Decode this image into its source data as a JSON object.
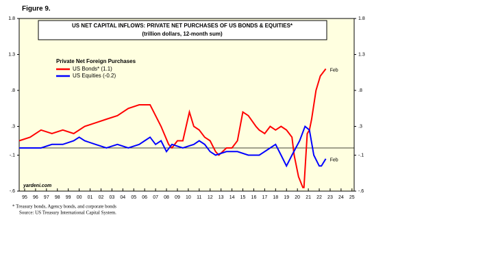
{
  "chart_data": {
    "type": "line",
    "figure_label": "Figure 9.",
    "title": "US NET CAPITAL INFLOWS: PRIVATE NET PURCHASES OF US BONDS & EQUITIES*",
    "subtitle": "(trillion dollars, 12-month sum)",
    "legend_title": "Private Net Foreign Purchases",
    "source_mark": "yardeni.com",
    "footnotes": [
      "*   Treasury bonds, Agency bonds, and corporate bonds",
      "Source: US Treasury International Capital System."
    ],
    "ylim": [
      -0.6,
      1.8
    ],
    "yticks": [
      1.8,
      {
        "value": 1.3,
        "label": "1.3"
      },
      {
        "value": 0.8,
        "label": ".8"
      },
      {
        "value": 0.3,
        "label": ".3"
      },
      {
        "value": -0.1,
        "label": "-.1"
      },
      {
        "value": -0.6,
        "label": "-.6"
      }
    ],
    "reference_line": 0,
    "xlim": [
      1995,
      2025.7
    ],
    "xticks": [
      {
        "value": 1995.5,
        "label": "95"
      },
      {
        "value": 1996.5,
        "label": "96"
      },
      {
        "value": 1997.5,
        "label": "97"
      },
      {
        "value": 1998.5,
        "label": "98"
      },
      {
        "value": 1999.5,
        "label": "99"
      },
      {
        "value": 2000.5,
        "label": "00"
      },
      {
        "value": 2001.5,
        "label": "01"
      },
      {
        "value": 2002.5,
        "label": "02"
      },
      {
        "value": 2003.5,
        "label": "03"
      },
      {
        "value": 2004.5,
        "label": "04"
      },
      {
        "value": 2005.5,
        "label": "05"
      },
      {
        "value": 2006.5,
        "label": "06"
      },
      {
        "value": 2007.5,
        "label": "07"
      },
      {
        "value": 2008.5,
        "label": "08"
      },
      {
        "value": 2009.5,
        "label": "09"
      },
      {
        "value": 2010.5,
        "label": "10"
      },
      {
        "value": 2011.5,
        "label": "11"
      },
      {
        "value": 2012.5,
        "label": "12"
      },
      {
        "value": 2013.5,
        "label": "13"
      },
      {
        "value": 2014.5,
        "label": "14"
      },
      {
        "value": 2015.5,
        "label": "15"
      },
      {
        "value": 2016.5,
        "label": "16"
      },
      {
        "value": 2017.5,
        "label": "17"
      },
      {
        "value": 2018.5,
        "label": "18"
      },
      {
        "value": 2019.5,
        "label": "19"
      },
      {
        "value": 2020.5,
        "label": "20"
      },
      {
        "value": 2021.5,
        "label": "21"
      },
      {
        "value": 2022.5,
        "label": "22"
      },
      {
        "value": 2023.5,
        "label": "23"
      },
      {
        "value": 2024.5,
        "label": "24"
      },
      {
        "value": 2025.5,
        "label": "25"
      }
    ],
    "series": [
      {
        "name": "US Bonds* (1.1)",
        "color": "#ff0000",
        "end_label": "Feb",
        "x": [
          1995,
          1996,
          1997,
          1998,
          1999,
          2000,
          2001,
          2002,
          2003,
          2004,
          2005,
          2006,
          2007,
          2008,
          2008.7,
          2009,
          2009.5,
          2010,
          2010.6,
          2011,
          2011.5,
          2012,
          2012.5,
          2013,
          2013.3,
          2014,
          2014.5,
          2015,
          2015.5,
          2016,
          2016.7,
          2017,
          2017.5,
          2018,
          2018.5,
          2019,
          2019.5,
          2020,
          2020.2,
          2020.6,
          2021,
          2021.1,
          2021.4,
          2021.6,
          2021.8,
          2022.2,
          2022.6,
          2023.1
        ],
        "values": [
          0.1,
          0.15,
          0.25,
          0.2,
          0.25,
          0.2,
          0.3,
          0.35,
          0.4,
          0.45,
          0.55,
          0.6,
          0.6,
          0.3,
          0.05,
          0.0,
          0.1,
          0.1,
          0.5,
          0.3,
          0.25,
          0.15,
          0.1,
          -0.05,
          -0.1,
          0.0,
          0.0,
          0.1,
          0.5,
          0.45,
          0.3,
          0.25,
          0.2,
          0.3,
          0.25,
          0.3,
          0.25,
          0.15,
          -0.1,
          -0.4,
          -0.55,
          -0.55,
          0.2,
          0.25,
          0.4,
          0.8,
          1.0,
          1.1
        ]
      },
      {
        "name": "US Equities (-0.2)",
        "color": "#0000ff",
        "end_label": "Feb",
        "x": [
          1995,
          1996,
          1997,
          1998,
          1999,
          2000,
          2000.5,
          2001,
          2002,
          2003,
          2004,
          2005,
          2006,
          2006.5,
          2007,
          2007.5,
          2008,
          2008.5,
          2009,
          2010,
          2011,
          2011.5,
          2012,
          2012.5,
          2013,
          2014,
          2015,
          2016,
          2017,
          2018,
          2018.5,
          2019,
          2019.5,
          2020,
          2020.7,
          2021.2,
          2021.6,
          2022,
          2022.5,
          2022.7,
          2023.1
        ],
        "values": [
          0.0,
          0.0,
          0.0,
          0.05,
          0.05,
          0.1,
          0.15,
          0.1,
          0.05,
          0.0,
          0.05,
          0.0,
          0.05,
          0.1,
          0.15,
          0.05,
          0.1,
          -0.05,
          0.05,
          0.0,
          0.05,
          0.1,
          0.05,
          -0.05,
          -0.1,
          -0.05,
          -0.05,
          -0.1,
          -0.1,
          0.0,
          0.05,
          -0.1,
          -0.25,
          -0.1,
          0.1,
          0.3,
          0.25,
          -0.1,
          -0.25,
          -0.25,
          -0.15
        ]
      }
    ]
  }
}
